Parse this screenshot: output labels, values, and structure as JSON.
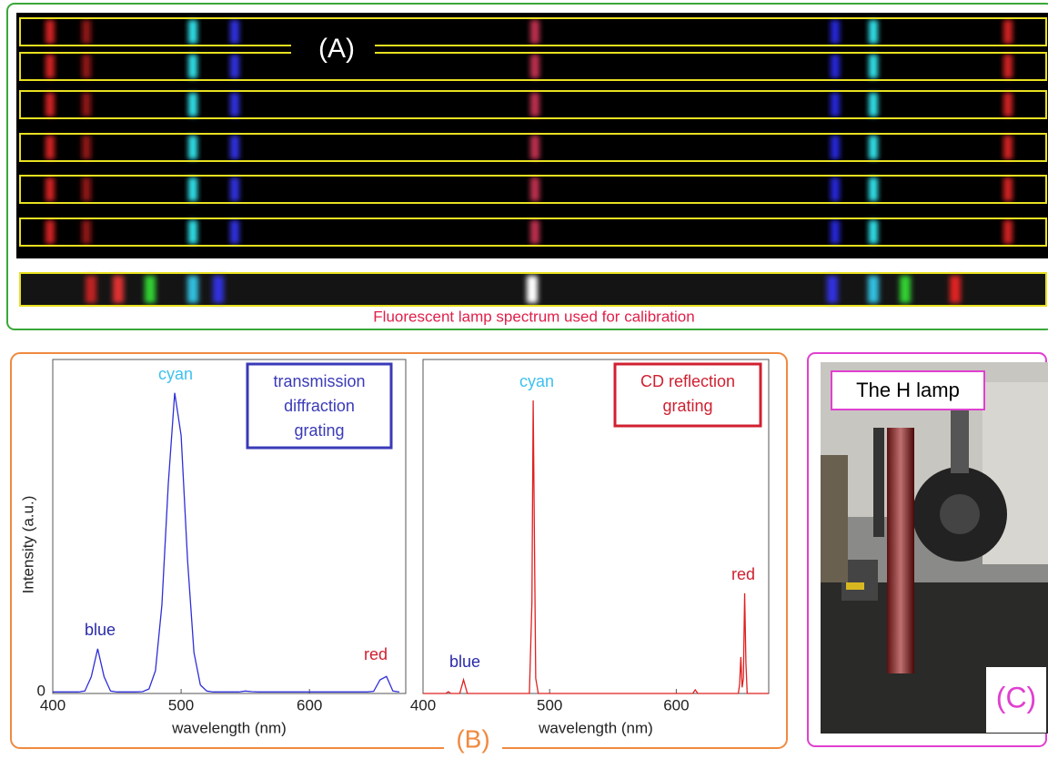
{
  "panel_a": {
    "label": "(A)",
    "caption": "Fluorescent lamp spectrum used for calibration"
  },
  "panel_b": {
    "label": "(B)"
  },
  "panel_c": {
    "label": "(C)",
    "tag": "The H lamp"
  },
  "chart_data": [
    {
      "type": "line",
      "legend_text": [
        "transmission",
        "diffraction",
        "grating"
      ],
      "legend_color": "#3a3ab8",
      "xlabel": "wavelength (nm)",
      "ylabel": "Intensity (a.u.)",
      "xlim": [
        400,
        675
      ],
      "ylim": [
        0,
        1.1
      ],
      "xticks": [
        400,
        500,
        600
      ],
      "yticks": [
        0
      ],
      "annotations": [
        {
          "text": "blue",
          "color": "#2a2aa8"
        },
        {
          "text": "cyan",
          "color": "#3fc0f0"
        },
        {
          "text": "red",
          "color": "#d02030"
        }
      ],
      "series": [
        {
          "color": "#2f2fd8",
          "x": [
            400,
            405,
            410,
            415,
            420,
            425,
            430,
            435,
            440,
            445,
            450,
            455,
            460,
            465,
            470,
            475,
            480,
            485,
            490,
            495,
            500,
            505,
            510,
            515,
            520,
            525,
            530,
            535,
            540,
            545,
            550,
            555,
            560,
            565,
            570,
            575,
            580,
            585,
            590,
            595,
            600,
            605,
            610,
            615,
            620,
            625,
            630,
            635,
            640,
            645,
            650,
            655,
            660,
            665,
            670
          ],
          "values": [
            0.005,
            0.005,
            0.005,
            0.005,
            0.005,
            0.008,
            0.055,
            0.147,
            0.055,
            0.008,
            0.005,
            0.005,
            0.005,
            0.005,
            0.006,
            0.015,
            0.075,
            0.29,
            0.69,
            0.99,
            0.85,
            0.44,
            0.135,
            0.028,
            0.008,
            0.005,
            0.005,
            0.005,
            0.005,
            0.005,
            0.008,
            0.006,
            0.005,
            0.005,
            0.005,
            0.005,
            0.005,
            0.005,
            0.005,
            0.005,
            0.005,
            0.005,
            0.005,
            0.005,
            0.005,
            0.005,
            0.005,
            0.005,
            0.005,
            0.005,
            0.007,
            0.045,
            0.056,
            0.008,
            0.005
          ]
        }
      ]
    },
    {
      "type": "line",
      "legend_text": [
        "CD reflection",
        "grating"
      ],
      "legend_color": "#d02030",
      "xlabel": "wavelength (nm)",
      "xlim": [
        400,
        673
      ],
      "ylim": [
        0,
        1.1
      ],
      "xticks": [
        400,
        500,
        600
      ],
      "annotations": [
        {
          "text": "blue",
          "color": "#2a2aa8"
        },
        {
          "text": "cyan",
          "color": "#3fc0f0"
        },
        {
          "text": "red",
          "color": "#d02030"
        }
      ],
      "series": [
        {
          "color": "#e02020",
          "x": [
            400,
            418,
            420,
            422,
            429,
            432,
            435,
            484,
            486,
            487,
            488,
            489,
            491,
            613,
            615,
            617,
            646,
            649,
            650,
            651,
            652,
            653,
            654,
            655,
            656,
            657,
            660,
            673
          ],
          "values": [
            0,
            0,
            0.006,
            0,
            0,
            0.045,
            0,
            0,
            0.3,
            0.965,
            0.5,
            0.05,
            0,
            0,
            0.012,
            0,
            0,
            0,
            0.03,
            0.12,
            0.02,
            0.05,
            0.33,
            0.1,
            0,
            0,
            0,
            0
          ]
        }
      ]
    }
  ]
}
